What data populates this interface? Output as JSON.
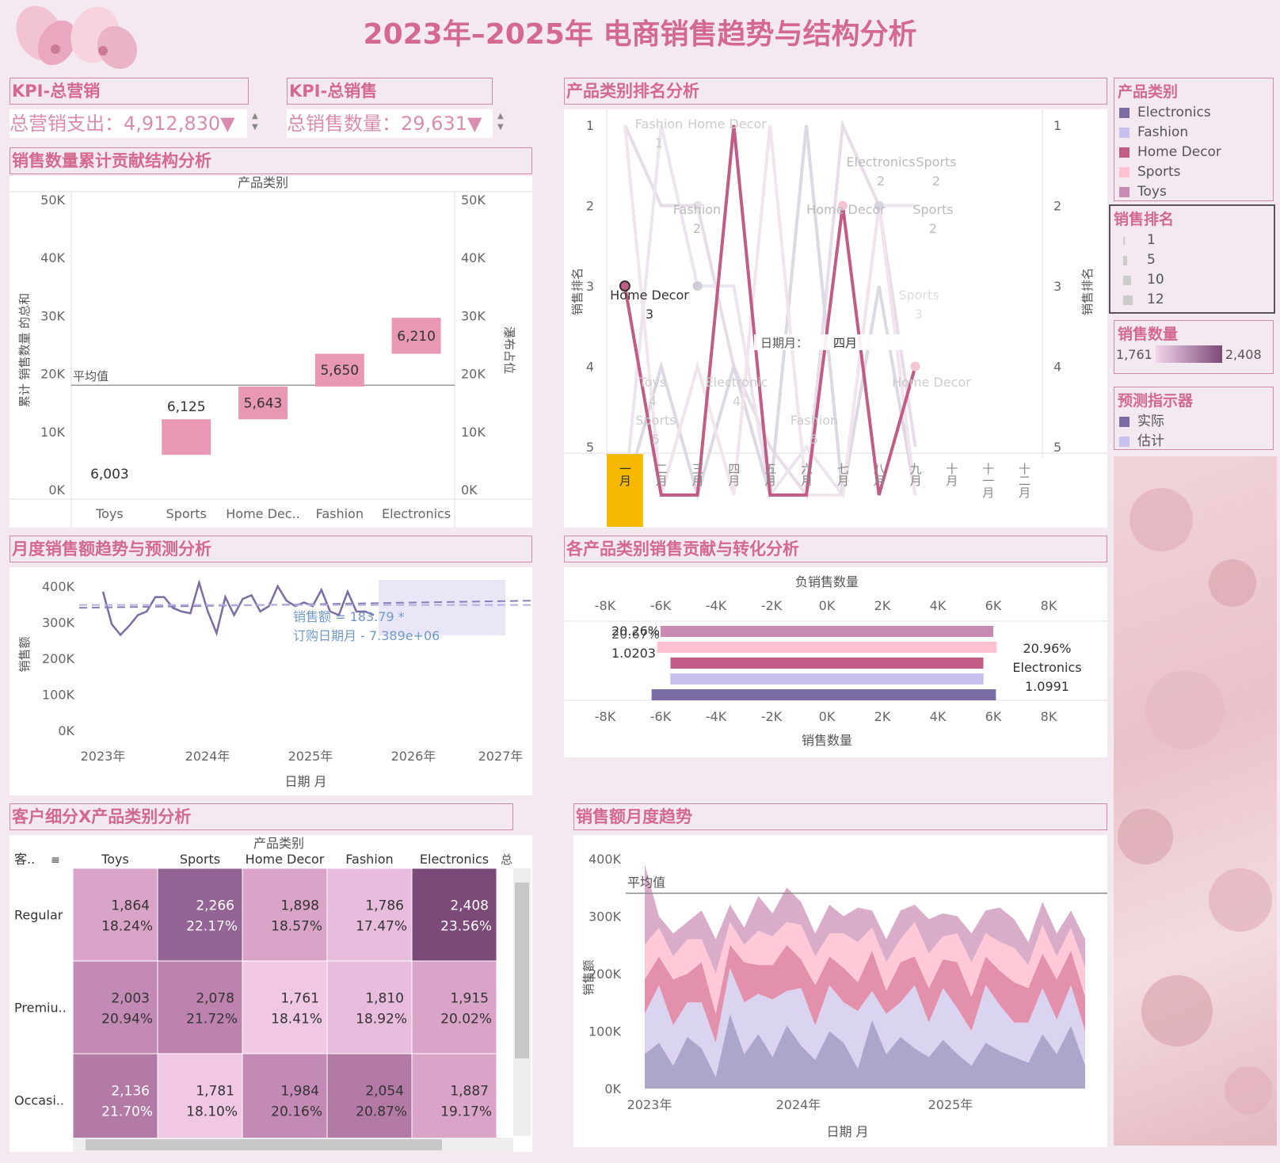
{
  "page_title": "2023年–2025年 电商销售趋势与结构分析",
  "colors": {
    "electronics": "#7b6ca6",
    "fashion": "#c8c0ee",
    "home_decor": "#c05c86",
    "sports": "#ffc0d0",
    "toys": "#c78bb1",
    "accent": "#d4698f"
  },
  "kpi": {
    "marketing": {
      "title": "KPI-总营销",
      "label": "总营销支出：4,912,830▼"
    },
    "sales": {
      "title": "KPI-总销售",
      "label": "总销售数量：29,631▼"
    }
  },
  "legends": {
    "category": {
      "title": "产品类别",
      "items": [
        "Electronics",
        "Fashion",
        "Home Decor",
        "Sports",
        "Toys"
      ]
    },
    "rank": {
      "title": "销售排名",
      "items": [
        "1",
        "5",
        "10",
        "12"
      ]
    },
    "qty": {
      "title": "销售数量",
      "min": "1,761",
      "max": "2,408"
    },
    "forecast": {
      "title": "预测指示器",
      "items": [
        "实际",
        "估计"
      ]
    }
  },
  "chart_data": [
    {
      "id": "waterfall",
      "type": "bar",
      "title": "销售数量累计贡献结构分析",
      "header": "产品类别",
      "categories": [
        "Toys",
        "Sports",
        "Home Dec..",
        "Fashion",
        "Electronics"
      ],
      "values": [
        6003,
        6125,
        5643,
        5650,
        6210
      ],
      "value_labels": [
        "6,003",
        "6,125",
        "5,643",
        "5,650",
        "6,210"
      ],
      "ylabel": "累计 销售数量 的总和",
      "y2label": "瀑布占位",
      "yticks": [
        "50K",
        "40K",
        "30K",
        "20K",
        "10K",
        "0K"
      ],
      "ylim": [
        0,
        50000
      ],
      "reference_line": {
        "label": "平均值",
        "value": 18000
      }
    },
    {
      "id": "rank",
      "type": "line",
      "title": "产品类别排名分析",
      "ylabel": "销售排名",
      "months": [
        "一月",
        "二月",
        "三月",
        "四月",
        "五月",
        "六月",
        "七月",
        "八月",
        "九月",
        "十月",
        "十一月",
        "十二月"
      ],
      "yticks": [
        "1",
        "2",
        "3",
        "4",
        "5"
      ],
      "highlight": {
        "series": "Home Decor",
        "ranks": [
          3,
          6,
          6,
          1,
          6,
          6,
          2,
          6,
          4
        ]
      },
      "labels": [
        {
          "name": "Fashion",
          "rank": "1"
        },
        {
          "name": "Home Decor",
          "rank": ""
        },
        {
          "name": "Electronics",
          "rank": "2"
        },
        {
          "name": "Sports",
          "rank": "2"
        },
        {
          "name": "Fashion",
          "rank": "2"
        },
        {
          "name": "Home Decor",
          "rank": ""
        },
        {
          "name": "Sports",
          "rank": "2"
        },
        {
          "name": "Home Decor",
          "rank": "3"
        },
        {
          "name": "Sports",
          "rank": "3"
        },
        {
          "name": "Toys",
          "rank": "4"
        },
        {
          "name": "Electronic",
          "rank": "4"
        },
        {
          "name": "Home Decor",
          "rank": ""
        },
        {
          "name": "Sports",
          "rank": "5"
        },
        {
          "name": "Fashion",
          "rank": "5"
        }
      ],
      "tooltip": {
        "key": "日期月：",
        "value": "四月"
      }
    },
    {
      "id": "monthly_forecast",
      "type": "line",
      "title": "月度销售额趋势与预测分析",
      "ylabel": "销售额",
      "xlabel": "日期 月",
      "yticks": [
        "400K",
        "300K",
        "200K",
        "100K",
        "0K"
      ],
      "xticks": [
        "2023年",
        "2024年",
        "2025年",
        "2026年",
        "2027年"
      ],
      "values": [
        385,
        295,
        265,
        290,
        320,
        330,
        370,
        370,
        340,
        330,
        325,
        410,
        330,
        270,
        370,
        320,
        365,
        375,
        330,
        345,
        400,
        360,
        345,
        355,
        345,
        390,
        330,
        320,
        385,
        330,
        330,
        320
      ],
      "trend_label_1": "销售额 = 183.79 *",
      "trend_label_2": "订购日期月 - 7.389e+06"
    },
    {
      "id": "diverging",
      "type": "bar",
      "title": "各产品类别销售贡献与转化分析",
      "top_axis_label": "负销售数量",
      "bottom_axis_label": "销售数量",
      "xticks": [
        "-8K",
        "-6K",
        "-4K",
        "-2K",
        "0K",
        "2K",
        "4K",
        "6K",
        "8K"
      ],
      "bars": [
        {
          "name": "Toys",
          "value": 6003
        },
        {
          "name": "Sports",
          "value": 6125
        },
        {
          "name": "Home Decor",
          "value": 5643
        },
        {
          "name": "Fashion",
          "value": 5650
        },
        {
          "name": "Electronics",
          "value": 6210
        }
      ],
      "left_labels": [
        "20.26%",
        "20.67%",
        "1.0203"
      ],
      "right_labels": [
        "20.96%",
        "Electronics",
        "1.0991"
      ]
    },
    {
      "id": "heatmap",
      "type": "heatmap",
      "title": "客户细分X产品类别分析",
      "header": "产品类别",
      "row_header": "客..",
      "columns": [
        "Toys",
        "Sports",
        "Home Decor",
        "Fashion",
        "Electronics"
      ],
      "extra_col": "总",
      "rows": [
        {
          "name": "Regular",
          "values": [
            "1,864",
            "2,266",
            "1,898",
            "1,786",
            "2,408"
          ],
          "pcts": [
            "18.24%",
            "22.17%",
            "18.57%",
            "17.47%",
            "23.56%"
          ],
          "colors": [
            "#d9a4c8",
            "#946494",
            "#d9a4c8",
            "#e7bcdc",
            "#7b4a78"
          ]
        },
        {
          "name": "Premiu..",
          "values": [
            "2,003",
            "2,078",
            "1,761",
            "1,810",
            "1,915"
          ],
          "pcts": [
            "20.94%",
            "21.72%",
            "18.41%",
            "18.92%",
            "20.02%"
          ],
          "colors": [
            "#c48ab6",
            "#bd82ae",
            "#f0c8e6",
            "#e7bcdc",
            "#d9a4c8"
          ]
        },
        {
          "name": "Occasi..",
          "values": [
            "2,136",
            "1,781",
            "1,984",
            "2,054",
            "1,887"
          ],
          "pcts": [
            "21.70%",
            "18.10%",
            "20.16%",
            "20.87%",
            "19.17%"
          ],
          "colors": [
            "#b47aa6",
            "#f0c8e6",
            "#c48ab6",
            "#b47aa6",
            "#d9a4c8"
          ]
        }
      ]
    },
    {
      "id": "area",
      "type": "area",
      "title": "销售额月度趋势",
      "ylabel": "销售额",
      "xlabel": "日期 月",
      "yticks": [
        "400K",
        "300K",
        "200K",
        "100K",
        "0K"
      ],
      "xticks": [
        "2023年",
        "2024年",
        "2025年"
      ],
      "reference_line": {
        "label": "平均值",
        "value": 340
      },
      "series": [
        {
          "name": "Electronics",
          "values": [
            60,
            80,
            40,
            90,
            70,
            20,
            130,
            60,
            95,
            55,
            110,
            75,
            50,
            100,
            80,
            35,
            120,
            60,
            90,
            70,
            55,
            85,
            60,
            40,
            80,
            65,
            55,
            45,
            95,
            60,
            110,
            40
          ]
        },
        {
          "name": "Fashion",
          "values": [
            70,
            100,
            70,
            60,
            80,
            60,
            80,
            90,
            70,
            100,
            60,
            100,
            60,
            80,
            70,
            100,
            50,
            70,
            60,
            110,
            60,
            90,
            80,
            60,
            100,
            80,
            60,
            70,
            80,
            60,
            70,
            60
          ]
        },
        {
          "name": "Home Decor",
          "values": [
            60,
            50,
            80,
            50,
            70,
            50,
            40,
            70,
            50,
            60,
            80,
            50,
            70,
            50,
            60,
            50,
            70,
            40,
            70,
            50,
            60,
            50,
            80,
            60,
            50,
            60,
            70,
            60,
            60,
            70,
            60,
            60
          ]
        },
        {
          "name": "Sports",
          "values": [
            60,
            50,
            40,
            60,
            40,
            70,
            40,
            30,
            60,
            50,
            40,
            60,
            50,
            40,
            60,
            70,
            40,
            50,
            40,
            60,
            60,
            40,
            50,
            60,
            40,
            50,
            60,
            40,
            50,
            40,
            40,
            50
          ]
        },
        {
          "name": "Toys",
          "values": [
            140,
            20,
            40,
            30,
            50,
            60,
            30,
            30,
            60,
            40,
            60,
            40,
            40,
            50,
            30,
            60,
            30,
            40,
            50,
            30,
            60,
            40,
            30,
            50,
            40,
            60,
            50,
            40,
            40,
            40,
            30,
            50
          ]
        }
      ]
    }
  ]
}
